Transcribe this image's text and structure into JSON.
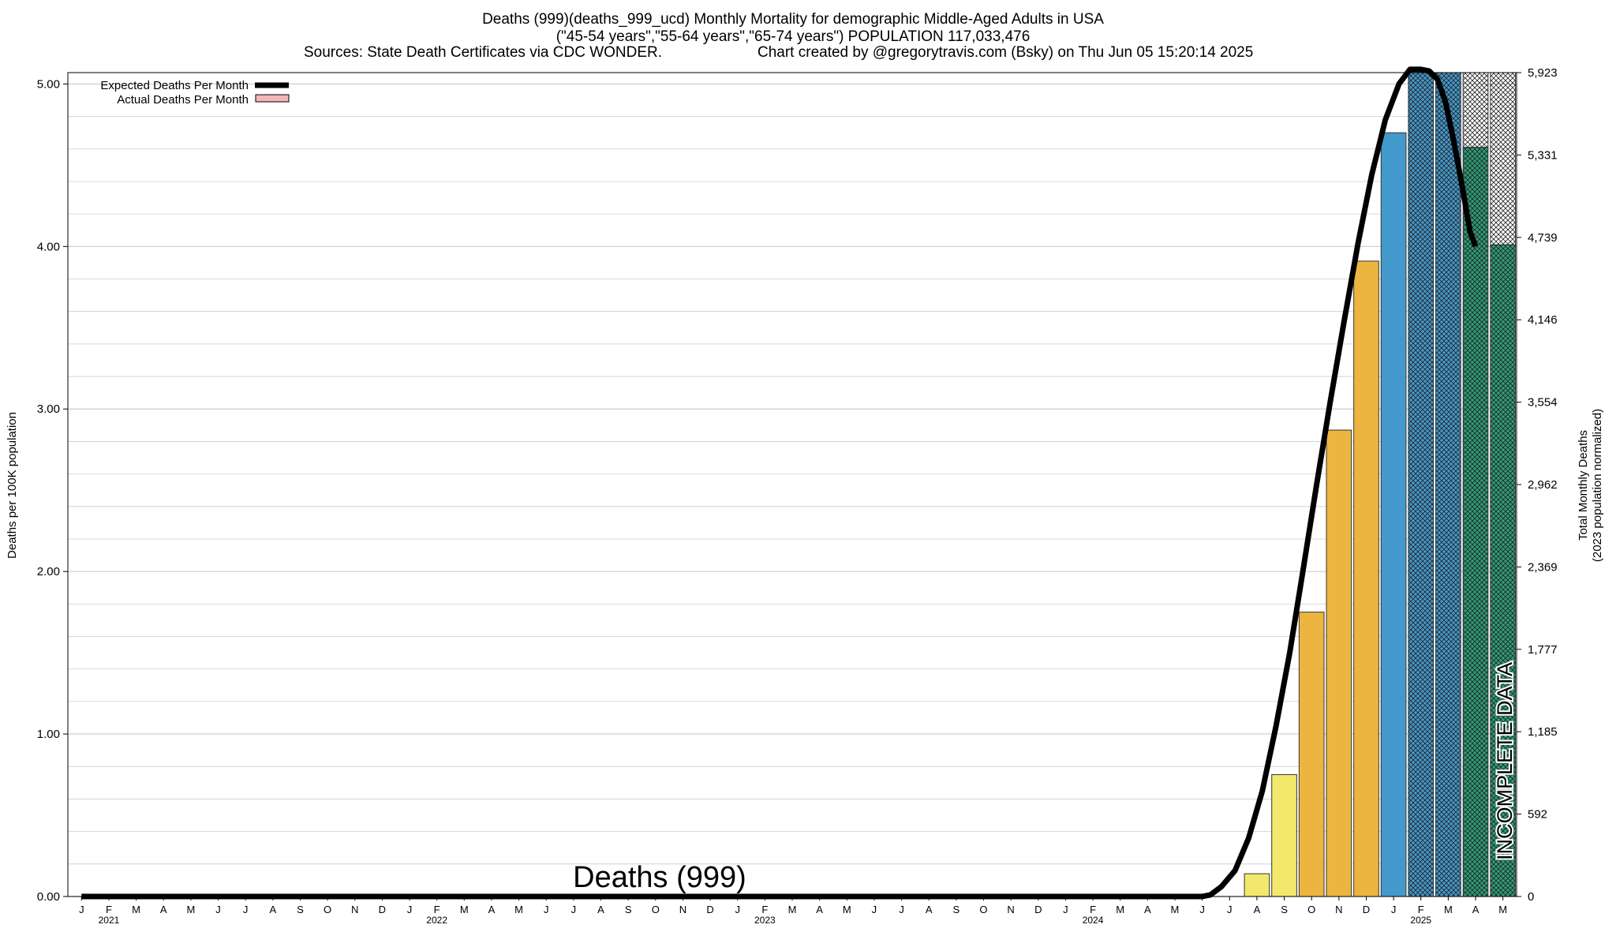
{
  "header": {
    "title_line1": "Deaths (999)(deaths_999_ucd) Monthly Mortality for demographic Middle-Aged Adults in USA",
    "title_line2": "(\"45-54 years\",\"55-64 years\",\"65-74 years\") POPULATION 117,033,476",
    "sources": "Sources: State Death Certificates via CDC WONDER.",
    "credit": "Chart created by @gregorytravis.com (Bsky) on Thu Jun 05 15:20:14 2025"
  },
  "legend": {
    "expected_label": "Expected Deaths Per Month",
    "actual_label": "Actual Deaths Per Month"
  },
  "watermark": "Deaths (999)",
  "incomplete_label": "INCOMPLETE DATA",
  "colors": {
    "expected_line": "#000000",
    "bar_yellow": "#f2e86b",
    "bar_orange": "#ecb53f",
    "bar_blue": "#4499cc",
    "bar_green": "#2e9e78",
    "legend_actual": "#f4b6b6",
    "grid": "#cccccc"
  },
  "chart_data": {
    "type": "bar",
    "title": "Deaths (999)(deaths_999_ucd) Monthly Mortality for demographic Middle-Aged Adults in USA",
    "ylabel": "Deaths per 100K population",
    "y2label_line1": "Total Monthly Deaths",
    "y2label_line2": "(2023 population normalized)",
    "ylim": [
      0,
      5.07
    ],
    "y_ticks": [
      "0.00",
      "1.00",
      "2.00",
      "3.00",
      "4.00",
      "5.00"
    ],
    "y2_ticks": [
      "0",
      "592",
      "1,185",
      "1,777",
      "2,369",
      "2,962",
      "3,554",
      "4,146",
      "4,739",
      "5,331",
      "5,923"
    ],
    "month_labels": [
      "J",
      "F",
      "M",
      "A",
      "M",
      "J",
      "J",
      "A",
      "S",
      "O",
      "N",
      "D",
      "J",
      "F",
      "M",
      "A",
      "M",
      "J",
      "J",
      "A",
      "S",
      "O",
      "N",
      "D",
      "J",
      "F",
      "M",
      "A",
      "M",
      "J",
      "J",
      "A",
      "S",
      "O",
      "N",
      "D",
      "J",
      "F",
      "M",
      "A",
      "M",
      "J",
      "J",
      "A",
      "S",
      "O",
      "N",
      "D",
      "J",
      "F",
      "M",
      "A",
      "M"
    ],
    "year_labels": [
      {
        "month_index": 1,
        "label": "2021"
      },
      {
        "month_index": 13,
        "label": "2022"
      },
      {
        "month_index": 25,
        "label": "2023"
      },
      {
        "month_index": 37,
        "label": "2024"
      },
      {
        "month_index": 49,
        "label": "2025"
      }
    ],
    "bars": [
      {
        "month_index": 43,
        "value": 0.14,
        "color": "bar_yellow",
        "hatched": false
      },
      {
        "month_index": 44,
        "value": 0.75,
        "color": "bar_yellow",
        "hatched": false
      },
      {
        "month_index": 45,
        "value": 1.75,
        "color": "bar_orange",
        "hatched": false
      },
      {
        "month_index": 46,
        "value": 2.87,
        "color": "bar_orange",
        "hatched": false
      },
      {
        "month_index": 47,
        "value": 3.91,
        "color": "bar_orange",
        "hatched": false
      },
      {
        "month_index": 48,
        "value": 4.7,
        "color": "bar_blue",
        "hatched": false
      },
      {
        "month_index": 49,
        "value": 5.07,
        "color": "bar_blue",
        "hatched": true
      },
      {
        "month_index": 50,
        "value": 5.07,
        "color": "bar_blue",
        "hatched": true
      },
      {
        "month_index": 51,
        "value": 4.61,
        "color": "bar_green",
        "hatched": true
      },
      {
        "month_index": 52,
        "value": 4.01,
        "color": "bar_green",
        "hatched": true
      }
    ],
    "expected_series": {
      "name": "Expected Deaths Per Month",
      "points": [
        [
          0,
          0
        ],
        [
          41,
          0
        ],
        [
          41.3,
          0.01
        ],
        [
          41.7,
          0.06
        ],
        [
          42.2,
          0.16
        ],
        [
          42.7,
          0.36
        ],
        [
          43.2,
          0.65
        ],
        [
          43.7,
          1.05
        ],
        [
          44.2,
          1.5
        ],
        [
          44.7,
          2.02
        ],
        [
          45.2,
          2.55
        ],
        [
          45.7,
          3.06
        ],
        [
          46.2,
          3.55
        ],
        [
          46.7,
          4.02
        ],
        [
          47.2,
          4.44
        ],
        [
          47.7,
          4.78
        ],
        [
          48.2,
          5.0
        ],
        [
          48.6,
          5.09
        ],
        [
          49.0,
          5.09
        ],
        [
          49.3,
          5.08
        ],
        [
          49.6,
          5.03
        ],
        [
          49.9,
          4.89
        ],
        [
          50.2,
          4.65
        ],
        [
          50.5,
          4.38
        ],
        [
          50.8,
          4.09
        ],
        [
          51.0,
          4.0
        ]
      ]
    },
    "grid": true,
    "legend_position": "top-left"
  }
}
